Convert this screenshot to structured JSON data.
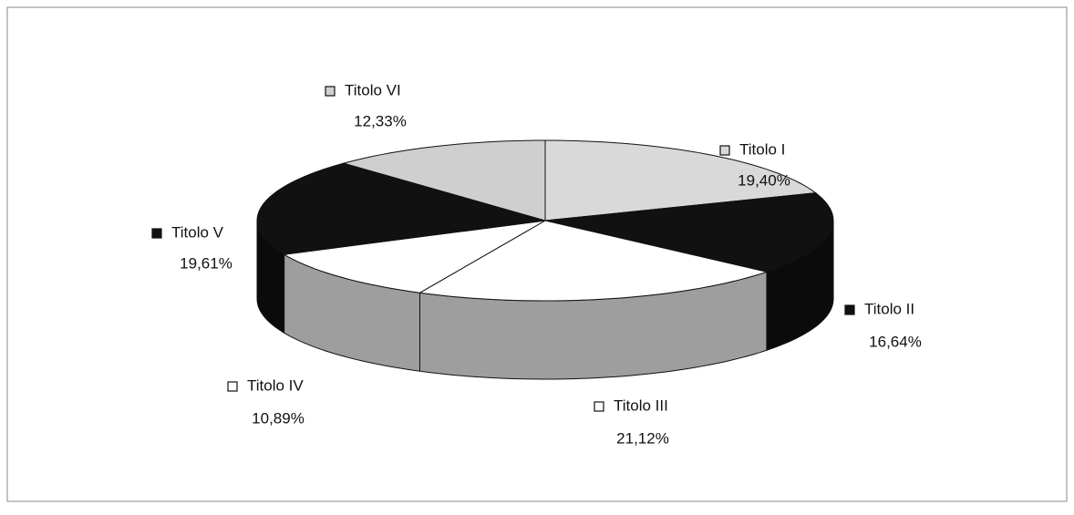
{
  "chart_data": {
    "type": "pie",
    "categories": [
      "Titolo I",
      "Titolo II",
      "Titolo III",
      "Titolo IV",
      "Titolo V",
      "Titolo VI"
    ],
    "values": [
      19.4,
      16.64,
      21.12,
      10.89,
      19.61,
      12.33
    ],
    "value_labels": [
      "19,40%",
      "16,64%",
      "21,12%",
      "10,89%",
      "19,61%",
      "12,33%"
    ],
    "colors": [
      "#d9d9d9",
      "#111111",
      "#ffffff",
      "#ffffff",
      "#111111",
      "#cfcfcf"
    ]
  }
}
